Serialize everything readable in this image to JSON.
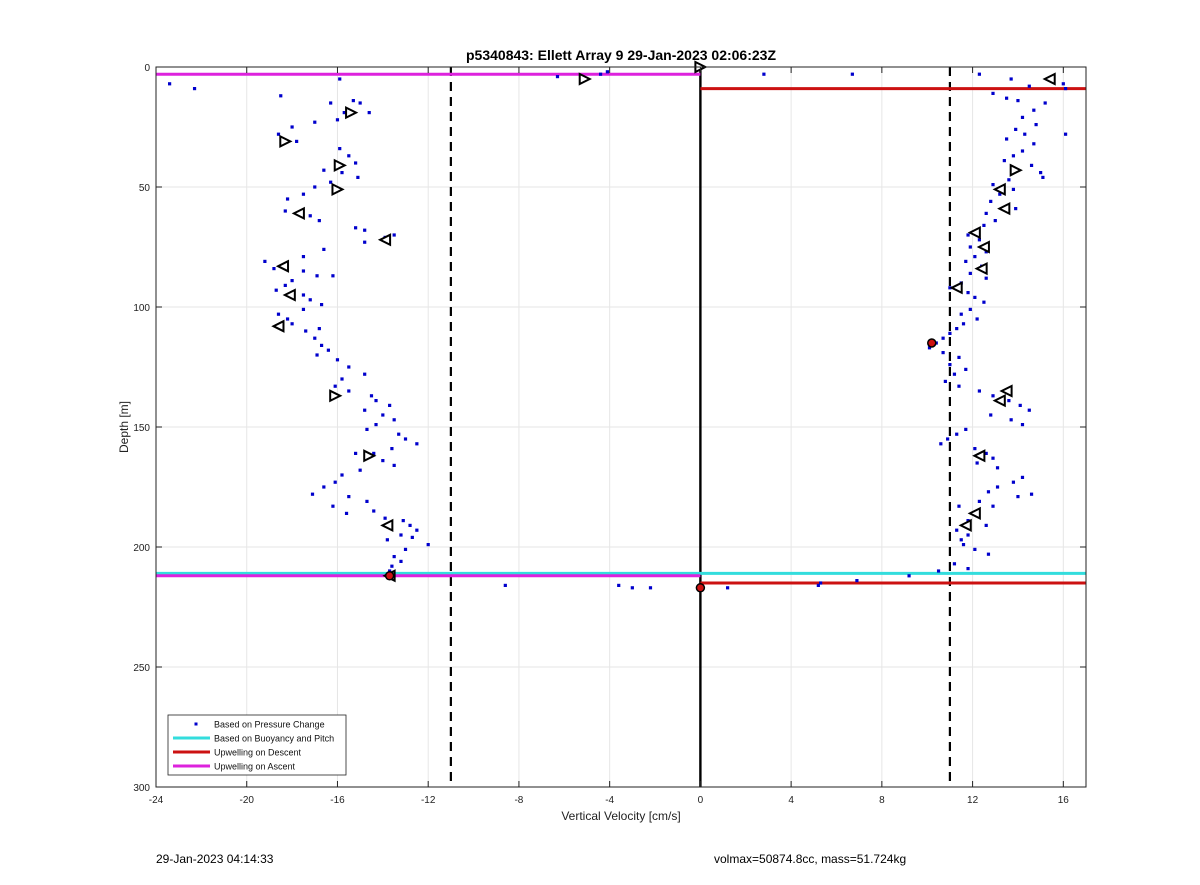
{
  "chart_data": {
    "type": "scatter",
    "title": "p5340843: Ellett Array 9 29-Jan-2023 02:06:23Z",
    "xlabel": "Vertical Velocity [cm/s]",
    "ylabel": "Depth [m]",
    "xlim": [
      -24,
      17
    ],
    "ylim": [
      0,
      300
    ],
    "y_reversed": true,
    "grid": true,
    "x_ticks": [
      -24,
      -20,
      -16,
      -12,
      -8,
      -4,
      0,
      4,
      8,
      12,
      16
    ],
    "y_ticks": [
      0,
      50,
      100,
      150,
      200,
      250,
      300
    ],
    "legend_placement": "bottom-left",
    "legend": [
      {
        "label": "Based on Pressure Change",
        "color": "#0000cc",
        "style": "dot"
      },
      {
        "label": "Based on Buoyancy and Pitch",
        "color": "#33dddd",
        "style": "line"
      },
      {
        "label": "Upwelling on Descent",
        "color": "#cc1111",
        "style": "line"
      },
      {
        "label": "Upwelling on Ascent",
        "color": "#dd22dd",
        "style": "line"
      }
    ],
    "reference_lines": {
      "vertical_dashed": [
        -11,
        11
      ],
      "vertical_solid": [
        0
      ]
    },
    "series": [
      {
        "name": "Based on Pressure Change",
        "color": "#0000cc",
        "points": [
          [
            -23.4,
            7
          ],
          [
            -22.3,
            9
          ],
          [
            -18.5,
            12
          ],
          [
            -15.9,
            5
          ],
          [
            -16.3,
            15
          ],
          [
            -15.3,
            14
          ],
          [
            -15.0,
            15
          ],
          [
            -14.6,
            19
          ],
          [
            -15.7,
            19
          ],
          [
            -16.0,
            22
          ],
          [
            -17.0,
            23
          ],
          [
            -18.0,
            25
          ],
          [
            -18.6,
            28
          ],
          [
            -18.4,
            31
          ],
          [
            -17.8,
            31
          ],
          [
            -15.9,
            34
          ],
          [
            -15.5,
            37
          ],
          [
            -15.2,
            40
          ],
          [
            -16.6,
            43
          ],
          [
            -15.8,
            44
          ],
          [
            -15.1,
            46
          ],
          [
            -16.3,
            48
          ],
          [
            -17.0,
            50
          ],
          [
            -17.5,
            53
          ],
          [
            -18.2,
            55
          ],
          [
            -18.3,
            60
          ],
          [
            -17.2,
            62
          ],
          [
            -16.8,
            64
          ],
          [
            -15.2,
            67
          ],
          [
            -14.8,
            68
          ],
          [
            -13.5,
            70
          ],
          [
            -13.9,
            71
          ],
          [
            -14.8,
            73
          ],
          [
            -16.6,
            76
          ],
          [
            -17.5,
            79
          ],
          [
            -19.2,
            81
          ],
          [
            -18.8,
            84
          ],
          [
            -17.5,
            85
          ],
          [
            -16.9,
            87
          ],
          [
            -16.2,
            87
          ],
          [
            -18.0,
            89
          ],
          [
            -18.3,
            91
          ],
          [
            -18.7,
            93
          ],
          [
            -17.5,
            95
          ],
          [
            -17.2,
            97
          ],
          [
            -16.7,
            99
          ],
          [
            -17.5,
            101
          ],
          [
            -18.6,
            103
          ],
          [
            -18.2,
            105
          ],
          [
            -18.0,
            107
          ],
          [
            -16.8,
            109
          ],
          [
            -17.4,
            110
          ],
          [
            -17.0,
            113
          ],
          [
            -16.7,
            116
          ],
          [
            -16.4,
            118
          ],
          [
            -16.9,
            120
          ],
          [
            -16.0,
            122
          ],
          [
            -15.5,
            125
          ],
          [
            -14.8,
            128
          ],
          [
            -15.8,
            130
          ],
          [
            -16.1,
            133
          ],
          [
            -15.5,
            135
          ],
          [
            -14.5,
            137
          ],
          [
            -14.3,
            139
          ],
          [
            -13.7,
            141
          ],
          [
            -14.8,
            143
          ],
          [
            -14.0,
            145
          ],
          [
            -13.5,
            147
          ],
          [
            -14.3,
            149
          ],
          [
            -14.7,
            151
          ],
          [
            -13.3,
            153
          ],
          [
            -13.0,
            155
          ],
          [
            -12.5,
            157
          ],
          [
            -13.6,
            159
          ],
          [
            -14.4,
            161
          ],
          [
            -15.2,
            161
          ],
          [
            -14.0,
            164
          ],
          [
            -13.5,
            166
          ],
          [
            -15.0,
            168
          ],
          [
            -15.8,
            170
          ],
          [
            -16.1,
            173
          ],
          [
            -16.6,
            175
          ],
          [
            -17.1,
            178
          ],
          [
            -15.5,
            179
          ],
          [
            -14.7,
            181
          ],
          [
            -16.2,
            183
          ],
          [
            -14.4,
            185
          ],
          [
            -15.6,
            186
          ],
          [
            -13.9,
            188
          ],
          [
            -13.1,
            189
          ],
          [
            -12.8,
            191
          ],
          [
            -12.5,
            193
          ],
          [
            -13.2,
            195
          ],
          [
            -13.8,
            197
          ],
          [
            -12.7,
            196
          ],
          [
            -12.0,
            199
          ],
          [
            -13.0,
            201
          ],
          [
            -13.5,
            204
          ],
          [
            -13.2,
            206
          ],
          [
            -13.6,
            208
          ],
          [
            -13.7,
            210
          ],
          [
            -8.6,
            216
          ],
          [
            -3.6,
            216
          ],
          [
            -3.0,
            217
          ],
          [
            -2.2,
            217
          ],
          [
            -6.3,
            4
          ],
          [
            -4.4,
            3
          ],
          [
            -4.1,
            2
          ],
          [
            2.8,
            3
          ],
          [
            6.7,
            3
          ],
          [
            12.3,
            3
          ],
          [
            13.7,
            5
          ],
          [
            15.3,
            5
          ],
          [
            16.0,
            7
          ],
          [
            16.1,
            9
          ],
          [
            14.5,
            8
          ],
          [
            12.9,
            11
          ],
          [
            13.5,
            13
          ],
          [
            14.0,
            14
          ],
          [
            15.2,
            15
          ],
          [
            14.7,
            18
          ],
          [
            14.2,
            21
          ],
          [
            14.8,
            24
          ],
          [
            13.9,
            26
          ],
          [
            14.3,
            28
          ],
          [
            13.5,
            30
          ],
          [
            14.7,
            32
          ],
          [
            16.1,
            28
          ],
          [
            14.2,
            35
          ],
          [
            13.8,
            37
          ],
          [
            13.4,
            39
          ],
          [
            14.6,
            41
          ],
          [
            15.0,
            44
          ],
          [
            15.1,
            46
          ],
          [
            13.6,
            47
          ],
          [
            12.9,
            49
          ],
          [
            13.8,
            51
          ],
          [
            13.2,
            53
          ],
          [
            12.8,
            56
          ],
          [
            13.5,
            58
          ],
          [
            13.9,
            59
          ],
          [
            12.6,
            61
          ],
          [
            13.0,
            64
          ],
          [
            12.5,
            66
          ],
          [
            12.2,
            68
          ],
          [
            11.8,
            70
          ],
          [
            12.3,
            72
          ],
          [
            11.9,
            75
          ],
          [
            12.6,
            77
          ],
          [
            12.1,
            79
          ],
          [
            11.7,
            81
          ],
          [
            12.4,
            83
          ],
          [
            11.9,
            86
          ],
          [
            12.6,
            88
          ],
          [
            11.5,
            90
          ],
          [
            11.0,
            92
          ],
          [
            11.8,
            94
          ],
          [
            12.1,
            96
          ],
          [
            12.5,
            98
          ],
          [
            11.9,
            101
          ],
          [
            11.5,
            103
          ],
          [
            12.2,
            105
          ],
          [
            11.6,
            107
          ],
          [
            11.3,
            109
          ],
          [
            11.0,
            111
          ],
          [
            10.7,
            113
          ],
          [
            10.4,
            115
          ],
          [
            10.1,
            117
          ],
          [
            10.7,
            119
          ],
          [
            11.4,
            121
          ],
          [
            11.0,
            124
          ],
          [
            11.7,
            126
          ],
          [
            11.2,
            128
          ],
          [
            10.8,
            131
          ],
          [
            11.4,
            133
          ],
          [
            12.3,
            135
          ],
          [
            12.9,
            137
          ],
          [
            13.6,
            139
          ],
          [
            14.1,
            141
          ],
          [
            14.5,
            143
          ],
          [
            12.8,
            145
          ],
          [
            13.7,
            147
          ],
          [
            14.2,
            149
          ],
          [
            11.7,
            151
          ],
          [
            11.3,
            153
          ],
          [
            10.9,
            155
          ],
          [
            10.6,
            157
          ],
          [
            12.1,
            159
          ],
          [
            12.6,
            161
          ],
          [
            12.9,
            163
          ],
          [
            12.2,
            165
          ],
          [
            13.1,
            167
          ],
          [
            14.2,
            171
          ],
          [
            13.8,
            173
          ],
          [
            13.1,
            175
          ],
          [
            12.7,
            177
          ],
          [
            14.0,
            179
          ],
          [
            14.6,
            178
          ],
          [
            12.3,
            181
          ],
          [
            11.4,
            183
          ],
          [
            12.9,
            183
          ],
          [
            12.2,
            187
          ],
          [
            11.8,
            189
          ],
          [
            12.6,
            191
          ],
          [
            11.3,
            193
          ],
          [
            11.8,
            195
          ],
          [
            11.5,
            197
          ],
          [
            11.6,
            199
          ],
          [
            12.1,
            201
          ],
          [
            12.7,
            203
          ],
          [
            11.2,
            207
          ],
          [
            11.8,
            209
          ],
          [
            10.5,
            210
          ],
          [
            9.2,
            212
          ],
          [
            6.9,
            214
          ],
          [
            5.3,
            215
          ],
          [
            5.2,
            216
          ],
          [
            1.2,
            217
          ]
        ]
      },
      {
        "name": "Based on Buoyancy and Pitch",
        "color": "#33dddd",
        "segments": [
          {
            "y": 211,
            "x": [
              -24,
              17
            ]
          }
        ]
      },
      {
        "name": "Upwelling on Descent",
        "color": "#cc1111",
        "segments": [
          {
            "y": 9,
            "x": [
              0,
              17
            ]
          },
          {
            "y": 215,
            "x": [
              0,
              17
            ]
          }
        ]
      },
      {
        "name": "Upwelling on Ascent",
        "color": "#dd22dd",
        "segments": [
          {
            "y": 3,
            "x": [
              -24,
              0
            ]
          },
          {
            "y": 212,
            "x": [
              -24,
              0
            ]
          }
        ]
      }
    ],
    "triangle_markers": [
      {
        "x": -15.4,
        "y": 19,
        "dir": "right"
      },
      {
        "x": -18.3,
        "y": 31,
        "dir": "right"
      },
      {
        "x": -15.9,
        "y": 41,
        "dir": "right"
      },
      {
        "x": -16.0,
        "y": 51,
        "dir": "right"
      },
      {
        "x": -17.7,
        "y": 61,
        "dir": "left"
      },
      {
        "x": -13.9,
        "y": 72,
        "dir": "left"
      },
      {
        "x": -18.4,
        "y": 83,
        "dir": "left"
      },
      {
        "x": -18.1,
        "y": 95,
        "dir": "left"
      },
      {
        "x": -18.6,
        "y": 108,
        "dir": "left"
      },
      {
        "x": -16.1,
        "y": 137,
        "dir": "right"
      },
      {
        "x": -14.6,
        "y": 162,
        "dir": "right"
      },
      {
        "x": -13.8,
        "y": 191,
        "dir": "left"
      },
      {
        "x": -13.7,
        "y": 212,
        "dir": "left"
      },
      {
        "x": -5.1,
        "y": 5,
        "dir": "right"
      },
      {
        "x": 0.0,
        "y": 0,
        "dir": "right"
      },
      {
        "x": 15.4,
        "y": 5,
        "dir": "left"
      },
      {
        "x": 13.9,
        "y": 43,
        "dir": "right"
      },
      {
        "x": 13.2,
        "y": 51,
        "dir": "left"
      },
      {
        "x": 13.4,
        "y": 59,
        "dir": "left"
      },
      {
        "x": 12.1,
        "y": 69,
        "dir": "left"
      },
      {
        "x": 12.5,
        "y": 75,
        "dir": "left"
      },
      {
        "x": 12.4,
        "y": 84,
        "dir": "left"
      },
      {
        "x": 11.3,
        "y": 92,
        "dir": "left"
      },
      {
        "x": 13.5,
        "y": 135,
        "dir": "left"
      },
      {
        "x": 13.2,
        "y": 139,
        "dir": "left"
      },
      {
        "x": 12.3,
        "y": 162,
        "dir": "left"
      },
      {
        "x": 12.1,
        "y": 186,
        "dir": "left"
      },
      {
        "x": 11.7,
        "y": 191,
        "dir": "left"
      }
    ],
    "highlight_markers": [
      {
        "x": 10.2,
        "y": 115,
        "color": "#cc1111"
      },
      {
        "x": 0.0,
        "y": 217,
        "color": "#cc1111"
      },
      {
        "x": -13.7,
        "y": 212,
        "color": "#cc1111"
      }
    ]
  },
  "footer": {
    "left_text": "29-Jan-2023 04:14:33",
    "right_text": "volmax=50874.8cc, mass=51.724kg"
  }
}
